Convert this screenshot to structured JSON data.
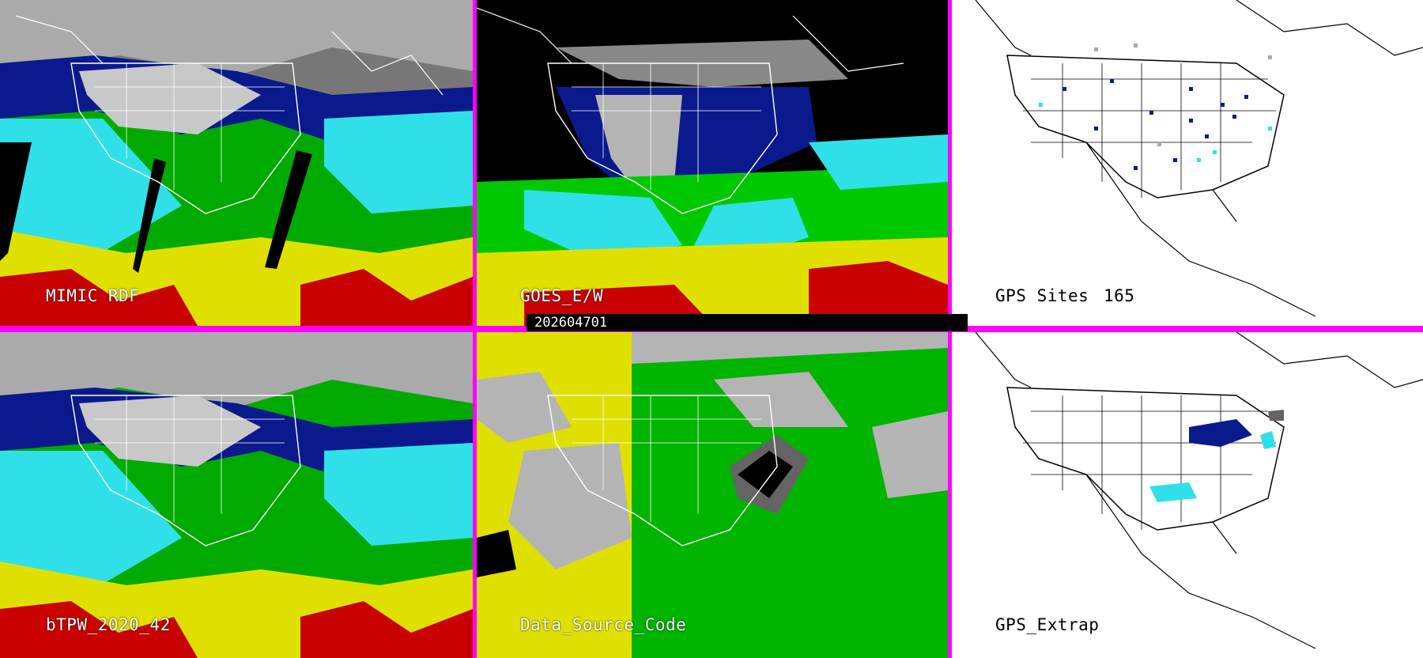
{
  "timestamp": "202604701",
  "panels": [
    {
      "id": "mimic",
      "label": "MIMIC RDF"
    },
    {
      "id": "goes",
      "label": "GOES_E/W"
    },
    {
      "id": "gps-sites",
      "label": "GPS Sites",
      "count": "165"
    },
    {
      "id": "btpw",
      "label": "bTPW_2020_42"
    },
    {
      "id": "data-source",
      "label": "Data_Source_Code"
    },
    {
      "id": "gps-extrap",
      "label": "GPS_Extrap"
    }
  ],
  "colors": {
    "frame": "#ff00ff",
    "tpw_scale": [
      "#000000",
      "#888888",
      "#0a1a8c",
      "#1e3cd2",
      "#30e0e8",
      "#a0f0f0",
      "#00c800",
      "#88ee00",
      "#e0e000",
      "#c8a000",
      "#c80000"
    ],
    "source_codes": [
      "#b4b4b4",
      "#e0e000",
      "#00b400",
      "#000000",
      "#646464"
    ]
  },
  "icons": [
    "coastline-map",
    "state-boundaries"
  ]
}
